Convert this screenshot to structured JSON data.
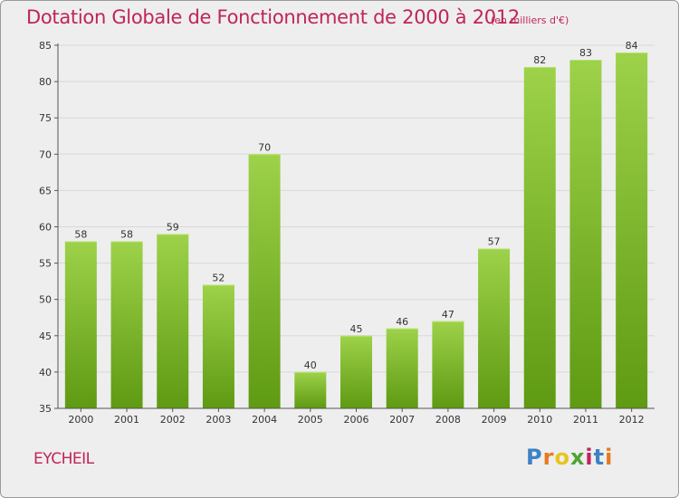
{
  "header": {
    "title": "Dotation Globale de Fonctionnement de 2000 à 2012",
    "subtitle": "(en milliers d'€)"
  },
  "footer": {
    "commune": "EYCHEIL",
    "logo_letters": [
      "P",
      "r",
      "o",
      "x",
      "i",
      "t",
      "i"
    ],
    "logo_colors": [
      "#3d82c4",
      "#e8791e",
      "#e8c41e",
      "#4da533",
      "#c0245a",
      "#3d82c4",
      "#e8791e"
    ]
  },
  "colors": {
    "bar_top": "#9dd24a",
    "bar_bottom": "#5e9a12",
    "accent": "#c0245a",
    "grid": "#d8d8d8",
    "background": "#eeeeee"
  },
  "chart_data": {
    "type": "bar",
    "title": "Dotation Globale de Fonctionnement de 2000 à 2012",
    "subtitle": "(en milliers d'€)",
    "xlabel": "",
    "ylabel": "",
    "categories": [
      "2000",
      "2001",
      "2002",
      "2003",
      "2004",
      "2005",
      "2006",
      "2007",
      "2008",
      "2009",
      "2010",
      "2011",
      "2012"
    ],
    "values": [
      58,
      58,
      59,
      52,
      70,
      40,
      45,
      46,
      47,
      57,
      82,
      83,
      84
    ],
    "ylim": [
      35,
      85
    ],
    "yticks": [
      35,
      40,
      45,
      50,
      55,
      60,
      65,
      70,
      75,
      80,
      85
    ],
    "grid": true,
    "data_labels": true
  }
}
